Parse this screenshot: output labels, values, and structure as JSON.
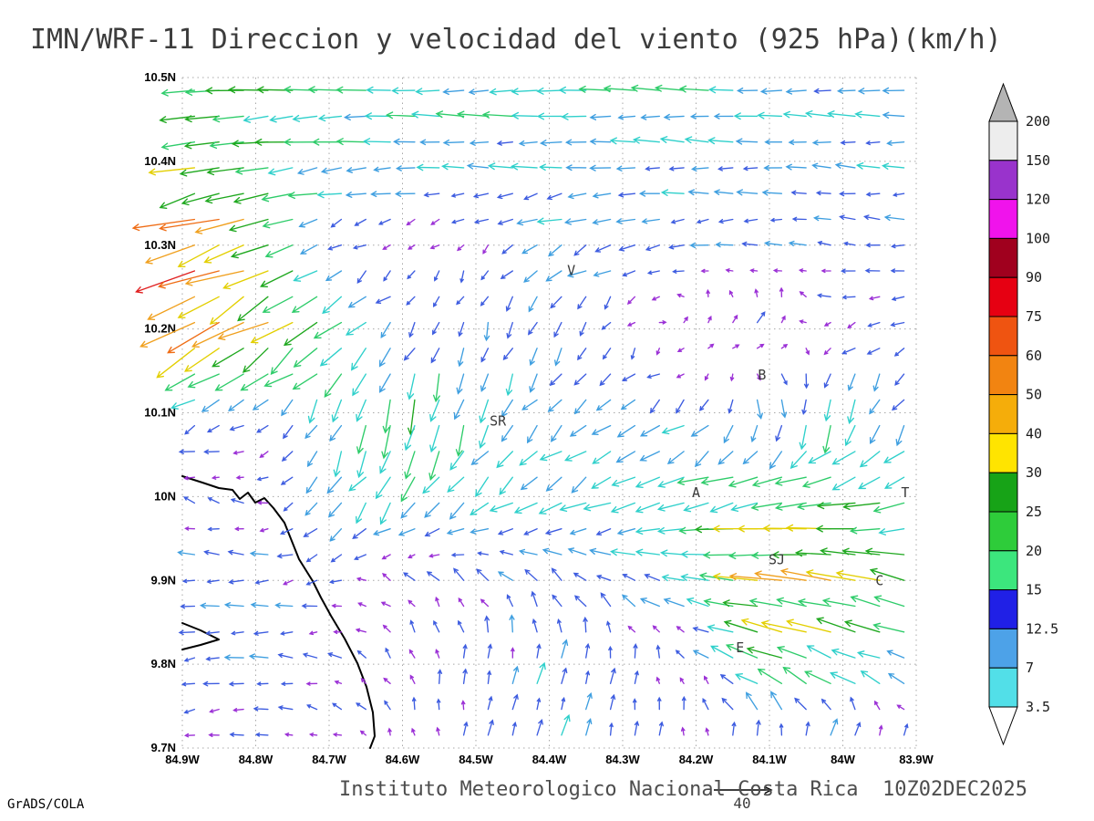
{
  "title": "IMN/WRF-11 Direccion y velocidad del viento (925 hPa)(km/h)",
  "caption": "Instituto Meteorologico Nacional Costa Rica  10Z02DEC2025",
  "credit": "GrADS/COLA",
  "reference_arrow": {
    "value": 40,
    "label": "40"
  },
  "axes": {
    "lat_ticks": [
      "10.5N",
      "10.4N",
      "10.3N",
      "10.2N",
      "10.1N",
      "10N",
      "9.9N",
      "9.8N",
      "9.7N"
    ],
    "lon_ticks": [
      "84.9W",
      "84.8W",
      "84.7W",
      "84.6W",
      "84.5W",
      "84.4W",
      "84.3W",
      "84.2W",
      "84.1W",
      "84W",
      "83.9W"
    ],
    "lat_range": [
      9.7,
      10.5
    ],
    "lon_range": [
      -84.9,
      -83.9
    ]
  },
  "colorbar": {
    "labels": [
      "200",
      "150",
      "120",
      "100",
      "90",
      "75",
      "60",
      "50",
      "40",
      "30",
      "25",
      "20",
      "15",
      "12.5",
      "7",
      "3.5"
    ],
    "segments": [
      {
        "range": "150-200",
        "color": "#ededed"
      },
      {
        "range": "120-150",
        "color": "#9933cc"
      },
      {
        "range": "100-120",
        "color": "#f013ec"
      },
      {
        "range": "90-100",
        "color": "#a0001e"
      },
      {
        "range": "75-90",
        "color": "#e60012"
      },
      {
        "range": "60-75",
        "color": "#ef5411"
      },
      {
        "range": "50-60",
        "color": "#f28411"
      },
      {
        "range": "40-50",
        "color": "#f5ad0a"
      },
      {
        "range": "30-40",
        "color": "#ffe400"
      },
      {
        "range": "25-30",
        "color": "#17a317"
      },
      {
        "range": "20-25",
        "color": "#2ecc3a"
      },
      {
        "range": "15-20",
        "color": "#3ce67d"
      },
      {
        "range": "12.5-15",
        "color": "#2020e6"
      },
      {
        "range": "7-12.5",
        "color": "#4da2e8"
      },
      {
        "range": "3.5-7",
        "color": "#52dfe8"
      }
    ],
    "over_color": "#b4b4b4",
    "under_color": "#ffffff"
  },
  "cities": [
    {
      "label": "V",
      "lon": -84.37,
      "lat": 10.27
    },
    {
      "label": "SR",
      "lon": -84.47,
      "lat": 10.09
    },
    {
      "label": "B",
      "lon": -84.11,
      "lat": 10.145
    },
    {
      "label": "A",
      "lon": -84.2,
      "lat": 10.005
    },
    {
      "label": "SJ",
      "lon": -84.09,
      "lat": 9.925
    },
    {
      "label": "C",
      "lon": -83.95,
      "lat": 9.9
    },
    {
      "label": "E",
      "lon": -84.14,
      "lat": 9.82
    },
    {
      "label": "T",
      "lon": -83.915,
      "lat": 10.005
    }
  ],
  "map": {
    "coastline": [
      [
        0,
        437
      ],
      [
        22,
        444
      ],
      [
        40,
        450
      ],
      [
        55,
        452
      ],
      [
        63,
        462
      ],
      [
        72,
        455
      ],
      [
        80,
        466
      ],
      [
        90,
        461
      ],
      [
        100,
        472
      ],
      [
        112,
        488
      ],
      [
        128,
        528
      ],
      [
        143,
        552
      ],
      [
        152,
        570
      ],
      [
        163,
        590
      ],
      [
        178,
        615
      ],
      [
        192,
        642
      ],
      [
        202,
        668
      ],
      [
        209,
        696
      ],
      [
        211,
        722
      ],
      [
        206,
        735
      ]
    ],
    "cape": [
      [
        0,
        598
      ],
      [
        20,
        606
      ],
      [
        40,
        616
      ],
      [
        20,
        622
      ],
      [
        0,
        627
      ]
    ]
  },
  "chart_data": {
    "type": "vector_field",
    "title": "Direccion y velocidad del viento",
    "level": "925 hPa",
    "units": "km/h",
    "reference_value": 40,
    "lon_range": [
      -84.9,
      -83.9
    ],
    "lat_range": [
      9.7,
      10.5
    ],
    "grid": true,
    "legend_position": "right",
    "control_grid": {
      "lons": [
        -84.9,
        -84.8,
        -84.7,
        -84.6,
        -84.5,
        -84.4,
        -84.3,
        -84.2,
        -84.1,
        -84.0,
        -83.9
      ],
      "lats": [
        10.5,
        10.4,
        10.3,
        10.2,
        10.1,
        10.0,
        9.9,
        9.8,
        9.7
      ],
      "u": [
        [
          -26,
          -25,
          -23,
          -22,
          -22,
          -21,
          -21,
          -20,
          -19,
          -19,
          -18
        ],
        [
          -30,
          -27,
          -20,
          -17,
          -16,
          -16,
          -15,
          -15,
          -14,
          -14,
          -14
        ],
        [
          -52,
          -36,
          -9,
          -5,
          -4,
          -14,
          -13,
          -11,
          -11,
          -10,
          -11
        ],
        [
          -40,
          -33,
          -24,
          -7,
          -3,
          -5,
          -4,
          4,
          7,
          -8,
          -9
        ],
        [
          -12,
          -9,
          -6,
          -4,
          -6,
          -10,
          -13,
          -11,
          3,
          -4,
          -7
        ],
        [
          -8,
          -6,
          -10,
          -12,
          -14,
          -16,
          -18,
          -22,
          -27,
          -29,
          -19
        ],
        [
          -11,
          -13,
          -8,
          -6,
          -8,
          -10,
          -12,
          -19,
          -33,
          -35,
          -28
        ],
        [
          -9,
          -13,
          -8,
          -4,
          2,
          4,
          2,
          -4,
          -28,
          -24,
          -14
        ],
        [
          -6,
          -8,
          -6,
          -2,
          2,
          4,
          2,
          0,
          6,
          9,
          4
        ]
      ],
      "v": [
        [
          -2,
          -1,
          0,
          1,
          0,
          -1,
          0,
          1,
          0,
          1,
          0
        ],
        [
          -5,
          -3,
          -2,
          0,
          1,
          0,
          0,
          1,
          0,
          1,
          0
        ],
        [
          -14,
          -12,
          -5,
          -4,
          -5,
          -7,
          -4,
          -2,
          0,
          2,
          0
        ],
        [
          -24,
          -20,
          -16,
          -9,
          -11,
          -13,
          -7,
          5,
          9,
          -3,
          -3
        ],
        [
          -6,
          -5,
          -15,
          -28,
          -19,
          -10,
          -8,
          -10,
          -17,
          -21,
          -11
        ],
        [
          3,
          2,
          -13,
          -15,
          -11,
          -10,
          -8,
          -6,
          -4,
          -3,
          -9
        ],
        [
          0,
          0,
          -3,
          5,
          7,
          9,
          6,
          4,
          2,
          6,
          8
        ],
        [
          -2,
          0,
          2,
          7,
          11,
          13,
          10,
          4,
          11,
          9,
          5
        ],
        [
          -2,
          0,
          2,
          6,
          9,
          12,
          11,
          8,
          13,
          10,
          6
        ]
      ]
    },
    "speed_colors": [
      {
        "max": 8,
        "color": "#9b30d6"
      },
      {
        "max": 13,
        "color": "#3d5ce0"
      },
      {
        "max": 17,
        "color": "#3f9fe0"
      },
      {
        "max": 22,
        "color": "#2fd0cb"
      },
      {
        "max": 27,
        "color": "#2ecc6a"
      },
      {
        "max": 33,
        "color": "#1fa81f"
      },
      {
        "max": 40,
        "color": "#e3cf00"
      },
      {
        "max": 48,
        "color": "#f0a01e"
      },
      {
        "max": 56,
        "color": "#ef6c14"
      },
      {
        "max": 999,
        "color": "#e02020"
      }
    ]
  }
}
